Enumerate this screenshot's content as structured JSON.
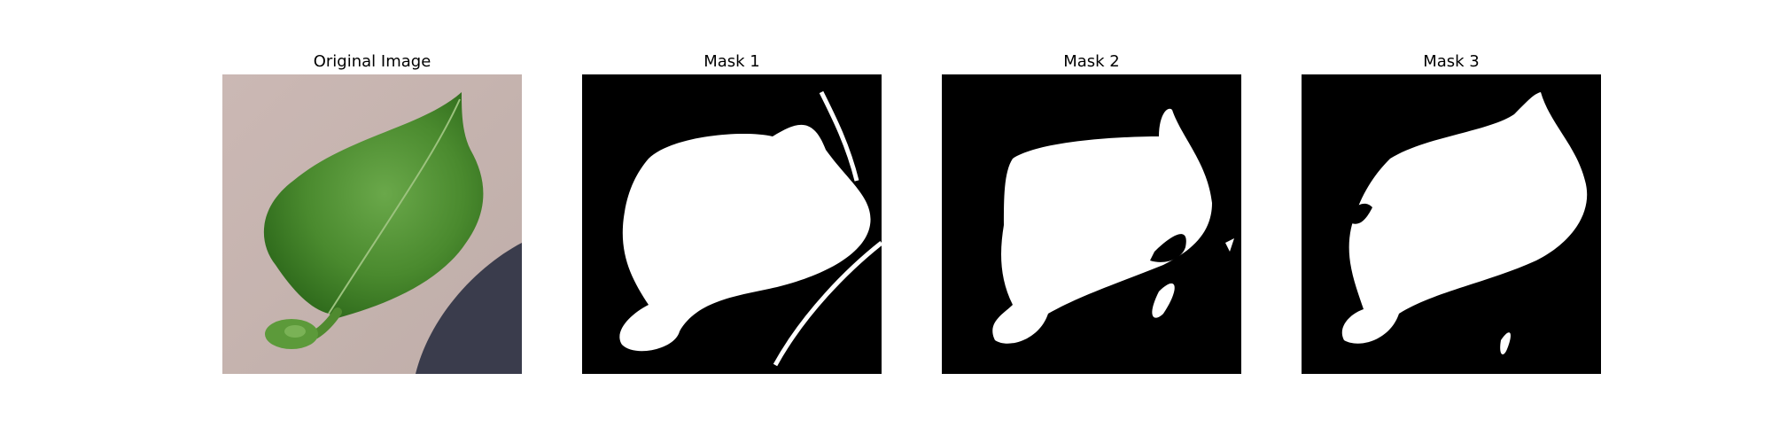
{
  "panels": [
    {
      "title": "Original Image",
      "kind": "photo"
    },
    {
      "title": "Mask 1",
      "kind": "mask"
    },
    {
      "title": "Mask 2",
      "kind": "mask"
    },
    {
      "title": "Mask 3",
      "kind": "mask"
    }
  ],
  "colors": {
    "background": "#c9b7b3",
    "shadow": "#3a3a4a",
    "leaf": "#4a8a2e",
    "mask_bg": "#000000",
    "mask_fg": "#ffffff"
  }
}
